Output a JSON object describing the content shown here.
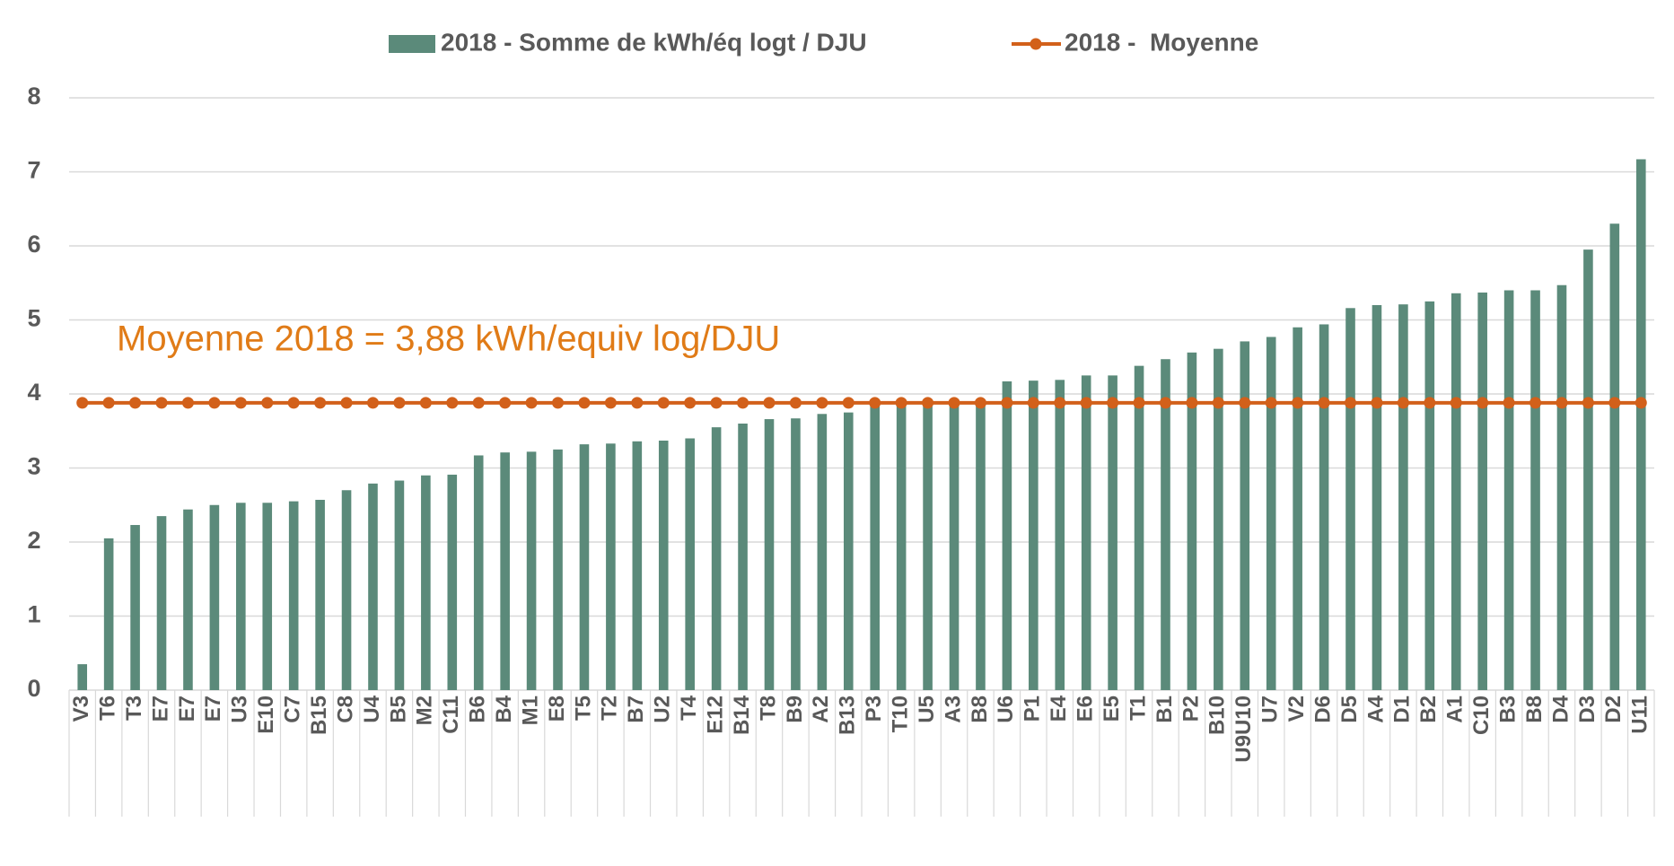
{
  "chart_data": {
    "type": "bar",
    "categories": [
      "V3",
      "T6",
      "T3",
      "E7",
      "E7",
      "E7",
      "U3",
      "E10",
      "C7",
      "B15",
      "C8",
      "U4",
      "B5",
      "M2",
      "C11",
      "B6",
      "B4",
      "M1",
      "E8",
      "T5",
      "T2",
      "B7",
      "U2",
      "T4",
      "E12",
      "B14",
      "T8",
      "B9",
      "A2",
      "B13",
      "P3",
      "T10",
      "U5",
      "A3",
      "B8",
      "U6",
      "P1",
      "E4",
      "E6",
      "E5",
      "T1",
      "B1",
      "P2",
      "B10",
      "U9U10",
      "U7",
      "V2",
      "D6",
      "D5",
      "A4",
      "D1",
      "B2",
      "A1",
      "C10",
      "B3",
      "B8",
      "D4",
      "D3",
      "D2",
      "U11"
    ],
    "series": [
      {
        "name": "2018 - Somme de kWh/éq logt / DJU",
        "type": "bar",
        "color": "#5b8a7a",
        "values": [
          0.35,
          2.05,
          2.23,
          2.35,
          2.44,
          2.5,
          2.53,
          2.53,
          2.55,
          2.57,
          2.7,
          2.79,
          2.83,
          2.9,
          2.91,
          3.17,
          3.21,
          3.22,
          3.25,
          3.32,
          3.33,
          3.36,
          3.37,
          3.4,
          3.55,
          3.6,
          3.66,
          3.67,
          3.73,
          3.75,
          3.87,
          3.88,
          3.89,
          3.9,
          3.9,
          4.17,
          4.18,
          4.19,
          4.25,
          4.25,
          4.38,
          4.47,
          4.56,
          4.61,
          4.71,
          4.77,
          4.9,
          4.94,
          5.16,
          5.2,
          5.21,
          5.25,
          5.36,
          5.37,
          5.4,
          5.4,
          5.47,
          5.95,
          6.3,
          7.17
        ]
      },
      {
        "name": "2018 -  Moyenne",
        "type": "line",
        "color": "#d2601a",
        "values": [
          3.88,
          3.88,
          3.88,
          3.88,
          3.88,
          3.88,
          3.88,
          3.88,
          3.88,
          3.88,
          3.88,
          3.88,
          3.88,
          3.88,
          3.88,
          3.88,
          3.88,
          3.88,
          3.88,
          3.88,
          3.88,
          3.88,
          3.88,
          3.88,
          3.88,
          3.88,
          3.88,
          3.88,
          3.88,
          3.88,
          3.88,
          3.88,
          3.88,
          3.88,
          3.88,
          3.88,
          3.88,
          3.88,
          3.88,
          3.88,
          3.88,
          3.88,
          3.88,
          3.88,
          3.88,
          3.88,
          3.88,
          3.88,
          3.88,
          3.88,
          3.88,
          3.88,
          3.88,
          3.88,
          3.88,
          3.88,
          3.88,
          3.88,
          3.88,
          3.88
        ]
      }
    ],
    "annotation": "Moyenne 2018 = 3,88 kWh/equiv log/DJU",
    "ylim": [
      0,
      8
    ],
    "yticks": [
      0,
      1,
      2,
      3,
      4,
      5,
      6,
      7,
      8
    ],
    "grid": true,
    "legend": "top"
  }
}
